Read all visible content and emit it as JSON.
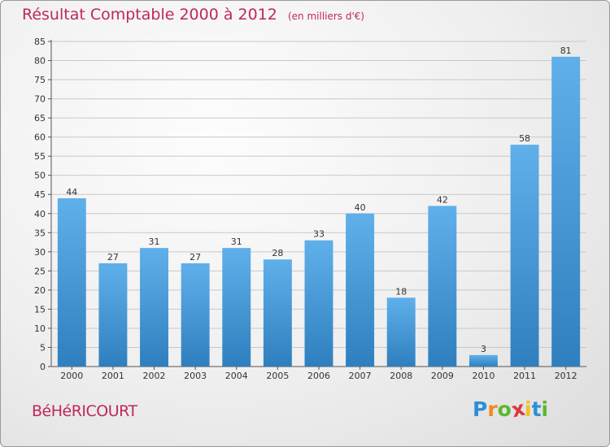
{
  "header": {
    "title": "Résultat Comptable 2000 à 2012",
    "unit": "(en milliers d'€)"
  },
  "footer": {
    "commune": "BéHéRICOURT",
    "logo": {
      "letters": [
        "P",
        "r",
        "o",
        "x",
        "i",
        "t",
        "i"
      ],
      "colors": [
        "#2e8fd8",
        "#f08a1c",
        "#5cb82e",
        "#d83a3a",
        "#f0c21c",
        "#2e8fd8",
        "#5cb82e"
      ]
    }
  },
  "colors": {
    "bar_light": "#5fb0ea",
    "bar_dark": "#2f7fbf",
    "grid": "#c8c8c8",
    "axis": "#555555",
    "text": "#333333"
  },
  "chart_data": {
    "type": "bar",
    "title": "Résultat Comptable 2000 à 2012",
    "subtitle": "(en milliers d'€)",
    "xlabel": "",
    "ylabel": "",
    "categories": [
      "2000",
      "2001",
      "2002",
      "2003",
      "2004",
      "2005",
      "2006",
      "2007",
      "2008",
      "2009",
      "2010",
      "2011",
      "2012"
    ],
    "values": [
      44,
      27,
      31,
      27,
      31,
      28,
      33,
      40,
      18,
      42,
      3,
      58,
      81
    ],
    "ylim": [
      0,
      85
    ],
    "ytick_step": 5,
    "grid": true,
    "legend": "none"
  }
}
